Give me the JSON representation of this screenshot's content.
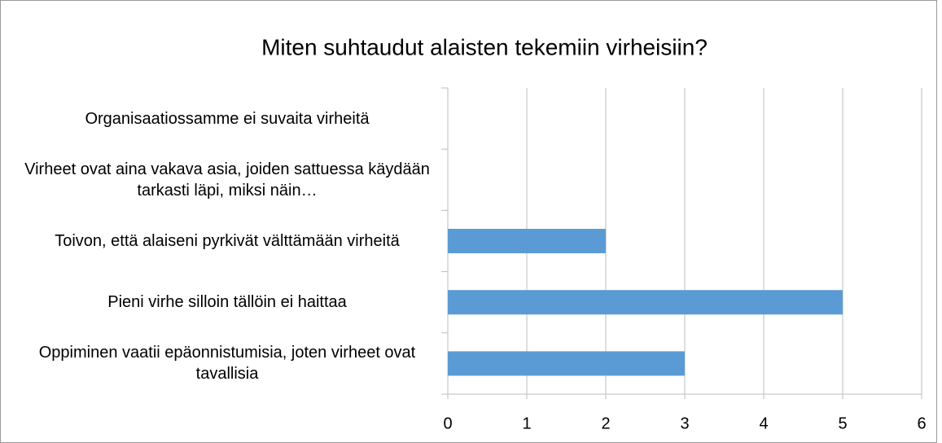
{
  "chart_data": {
    "type": "barh",
    "title": "Miten suhtaudut alaisten tekemiin virheisiin?",
    "categories": [
      "Organisaatiossamme ei suvaita virheitä",
      "Virheet ovat aina vakava asia, joiden sattuessa käydään tarkasti läpi, miksi näin…",
      "Toivon, että alaiseni pyrkivät välttämään virheitä",
      "Pieni virhe silloin tällöin ei haittaa",
      "Oppiminen vaatii epäonnistumisia, joten virheet ovat tavallisia"
    ],
    "values": [
      0,
      0,
      2,
      5,
      3
    ],
    "color": "#5b9bd5",
    "xlim": [
      0,
      6
    ],
    "xticks": [
      0,
      1,
      2,
      3,
      4,
      5,
      6
    ],
    "grid": true
  }
}
